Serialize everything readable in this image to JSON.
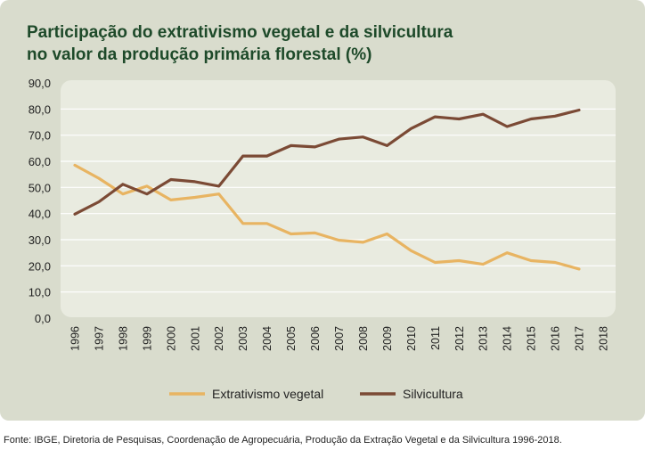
{
  "title_lines": [
    "Participação do extrativismo vegetal e da silvicultura",
    "no valor da produção primária florestal (%)"
  ],
  "source": "Fonte: IBGE, Diretoria de Pesquisas, Coordenação de Agropecuária, Produção da Extração Vegetal e da Silvicultura 1996-2018.",
  "colors": {
    "extrativismo": "#e8b462",
    "silvicultura": "#7b4a35",
    "plot_bg": "#e9ebe0",
    "card_bg": "#d9dccd",
    "title": "#1e4a2a"
  },
  "chart_data": {
    "type": "line",
    "title": "Participação do extrativismo vegetal e da silvicultura no valor da produção primária florestal (%)",
    "xlabel": "",
    "ylabel": "",
    "ylim": [
      0,
      90
    ],
    "y_ticks": [
      "0,0",
      "10,0",
      "20,0",
      "30,0",
      "40,0",
      "50,0",
      "60,0",
      "70,0",
      "80,0",
      "90,0"
    ],
    "grid": true,
    "legend_position": "bottom",
    "x": [
      "1996",
      "1997",
      "1998",
      "1999",
      "2000",
      "2001",
      "2002",
      "2003",
      "2004",
      "2005",
      "2006",
      "2007",
      "2008",
      "2009",
      "2010",
      "2011",
      "2012",
      "2013",
      "2014",
      "2015",
      "2016",
      "2017",
      "2018"
    ],
    "series": [
      {
        "name": "Extrativismo vegetal",
        "color": "#e8b462",
        "values": [
          58.5,
          53.5,
          47.5,
          50.5,
          45.2,
          46.2,
          47.5,
          36.2,
          36.2,
          32.2,
          32.6,
          29.8,
          29.0,
          32.2,
          25.8,
          21.3,
          22.0,
          20.6,
          25.0,
          22.0,
          21.3,
          18.8,
          null
        ]
      },
      {
        "name": "Silvicultura",
        "color": "#7b4a35",
        "values": [
          39.8,
          44.5,
          51.2,
          47.5,
          53.0,
          52.2,
          50.5,
          62.0,
          62.0,
          66.0,
          65.5,
          68.5,
          69.3,
          66.0,
          72.5,
          77.0,
          76.2,
          78.0,
          73.3,
          76.2,
          77.3,
          79.6,
          null
        ]
      }
    ]
  }
}
